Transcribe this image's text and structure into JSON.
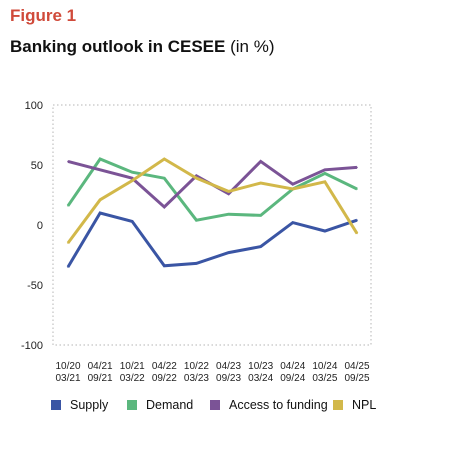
{
  "figure_label": "Figure 1",
  "title": "Banking outlook in CESEE",
  "title_unit": "(in %)",
  "chart_data": {
    "type": "line",
    "title": "Banking outlook in CESEE (in %)",
    "xlabel": "",
    "ylabel": "",
    "categories": [
      [
        "10/20",
        "03/21"
      ],
      [
        "04/21",
        "09/21"
      ],
      [
        "10/21",
        "03/22"
      ],
      [
        "04/22",
        "09/22"
      ],
      [
        "10/22",
        "03/23"
      ],
      [
        "04/23",
        "09/23"
      ],
      [
        "10/23",
        "03/24"
      ],
      [
        "04/24",
        "09/24"
      ],
      [
        "10/24",
        "03/25"
      ],
      [
        "04/25",
        "09/25"
      ]
    ],
    "ylim": [
      -100,
      100
    ],
    "yticks": [
      100,
      50,
      0,
      -50,
      -100
    ],
    "ytick_labels": [
      "100",
      "50",
      "0",
      "-50",
      "-100"
    ],
    "grid": "dotted frame",
    "legend_position": "bottom",
    "series": [
      {
        "name": "Supply",
        "color": "#3a55a4",
        "values": [
          -35,
          10,
          3,
          -34,
          -32,
          -23,
          -18,
          2,
          -5,
          4
        ]
      },
      {
        "name": "Demand",
        "color": "#5bb77e",
        "values": [
          16,
          55,
          44,
          39,
          4,
          9,
          8,
          30,
          43,
          30
        ]
      },
      {
        "name": "Access to funding",
        "color": "#7b5396",
        "values": [
          53,
          46,
          39,
          15,
          41,
          26,
          53,
          34,
          46,
          48
        ]
      },
      {
        "name": "NPL",
        "color": "#d2b84a",
        "values": [
          -15,
          21,
          37,
          55,
          39,
          28,
          35,
          30,
          36,
          -7
        ]
      }
    ]
  }
}
